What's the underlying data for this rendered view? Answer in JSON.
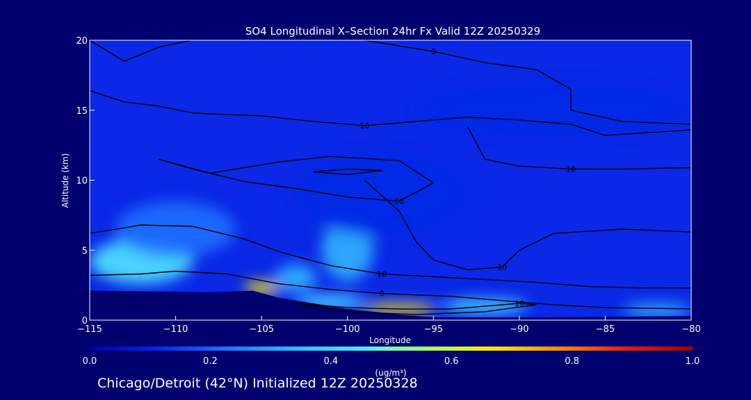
{
  "chart_data": {
    "type": "heatmap",
    "title": "SO4 Longitudinal X–Section 24hr  Fx Valid 12Z 20250329",
    "xlabel": "Longitude",
    "ylabel": "Altitude (km)",
    "xlim": [
      -115,
      -80
    ],
    "ylim": [
      0,
      20
    ],
    "x_ticks": [
      "−115",
      "−110",
      "−105",
      "−100",
      "−95",
      "−90",
      "−85",
      "−80"
    ],
    "x_tick_values": [
      -115,
      -110,
      -105,
      -100,
      -95,
      -90,
      -85,
      -80
    ],
    "y_ticks": [
      "0",
      "5",
      "10",
      "15",
      "20"
    ],
    "y_tick_values": [
      0,
      5,
      10,
      15,
      20
    ],
    "colorbar": {
      "label": "(ug/m³)",
      "ticks": [
        "0.0",
        "0.2",
        "0.4",
        "0.6",
        "0.8",
        "1.0"
      ],
      "tick_values": [
        0,
        0.2,
        0.4,
        0.6,
        0.8,
        1.0
      ],
      "colors": [
        "#0000a0",
        "#0028e6",
        "#1e6eff",
        "#32b4ff",
        "#50e6ff",
        "#a0ff6e",
        "#ffe600",
        "#ff8c00",
        "#e61e00",
        "#a00000"
      ]
    },
    "surface_altitude_km": [
      {
        "lon": -115,
        "alt": 2.1
      },
      {
        "lon": -108,
        "alt": 2.0
      },
      {
        "lon": -105.5,
        "alt": 2.1
      },
      {
        "lon": -104,
        "alt": 1.6
      },
      {
        "lon": -100,
        "alt": 0.8
      },
      {
        "lon": -97,
        "alt": 0.4
      },
      {
        "lon": -95,
        "alt": 0.2
      },
      {
        "lon": -92,
        "alt": 0.2
      },
      {
        "lon": -88,
        "alt": 0.2
      },
      {
        "lon": -80,
        "alt": 0.3
      }
    ],
    "concentration_blobs": [
      {
        "lon": -105,
        "alt": 2.3,
        "value": 0.65,
        "sx": 1.0,
        "sy": 0.5
      },
      {
        "lon": -97,
        "alt": 0.8,
        "value": 0.72,
        "sx": 2.2,
        "sy": 0.4
      },
      {
        "lon": -101,
        "alt": 1.3,
        "value": 0.45,
        "sx": 2.0,
        "sy": 0.5
      },
      {
        "lon": -92,
        "alt": 1.0,
        "value": 0.4,
        "sx": 2.5,
        "sy": 0.5
      },
      {
        "lon": -112,
        "alt": 4.2,
        "value": 0.4,
        "sx": 3.0,
        "sy": 1.6
      },
      {
        "lon": -110,
        "alt": 6.5,
        "value": 0.22,
        "sx": 3.5,
        "sy": 2.0
      },
      {
        "lon": -100,
        "alt": 5.0,
        "value": 0.3,
        "sx": 1.5,
        "sy": 2.2
      },
      {
        "lon": -103,
        "alt": 3.0,
        "value": 0.3,
        "sx": 1.2,
        "sy": 1.0
      },
      {
        "lon": -98,
        "alt": 9.0,
        "value": 0.12,
        "sx": 5.0,
        "sy": 3.0
      },
      {
        "lon": -82,
        "alt": 0.7,
        "value": 0.3,
        "sx": 2.0,
        "sy": 0.5
      },
      {
        "lon": -88,
        "alt": 15.0,
        "value": 0.12,
        "sx": 8.0,
        "sy": 2.0
      }
    ],
    "temperature_contours": [
      {
        "label": "0",
        "points": [
          [
            -115,
            20.0
          ],
          [
            -113,
            18.5
          ],
          [
            -111,
            19.5
          ],
          [
            -108,
            20.3
          ],
          [
            -103,
            20.4
          ],
          [
            -99,
            20.0
          ],
          [
            -95,
            19.2
          ],
          [
            -92,
            18.4
          ],
          [
            -89,
            17.9
          ],
          [
            -87,
            16.5
          ],
          [
            -87,
            15.0
          ],
          [
            -84,
            14.2
          ],
          [
            -80,
            14.0
          ]
        ]
      },
      {
        "label": "10",
        "points": [
          [
            -115,
            16.4
          ],
          [
            -113,
            15.6
          ],
          [
            -111,
            15.3
          ],
          [
            -109,
            14.8
          ],
          [
            -105,
            14.6
          ],
          [
            -102,
            14.2
          ],
          [
            -99,
            13.9
          ],
          [
            -96,
            14.2
          ],
          [
            -93,
            14.5
          ],
          [
            -90,
            14.3
          ],
          [
            -87,
            14.0
          ],
          [
            -85,
            13.2
          ],
          [
            -80,
            13.6
          ]
        ]
      },
      {
        "label": "20",
        "points": [
          [
            -111,
            11.5
          ],
          [
            -108,
            10.5
          ],
          [
            -104,
            11.3
          ],
          [
            -101,
            11.7
          ],
          [
            -97,
            11.4
          ],
          [
            -95,
            9.8
          ],
          [
            -97,
            8.5
          ],
          [
            -100,
            8.8
          ],
          [
            -103,
            9.4
          ],
          [
            -106,
            9.9
          ],
          [
            -109,
            10.8
          ],
          [
            -111,
            11.5
          ]
        ]
      },
      {
        "label": "",
        "points": [
          [
            -102,
            10.6
          ],
          [
            -100,
            10.8
          ],
          [
            -98,
            10.7
          ],
          [
            -100,
            10.4
          ],
          [
            -102,
            10.6
          ]
        ]
      },
      {
        "label": "10",
        "points": [
          [
            -115,
            6.2
          ],
          [
            -112,
            6.8
          ],
          [
            -109,
            6.7
          ],
          [
            -106,
            5.8
          ],
          [
            -104,
            4.9
          ],
          [
            -101,
            3.9
          ],
          [
            -98,
            3.3
          ],
          [
            -95,
            3.1
          ],
          [
            -92,
            2.9
          ],
          [
            -89,
            2.7
          ],
          [
            -86,
            2.4
          ],
          [
            -83,
            2.3
          ],
          [
            -80,
            2.3
          ]
        ]
      },
      {
        "label": "0",
        "points": [
          [
            -115,
            3.2
          ],
          [
            -112,
            3.3
          ],
          [
            -110,
            3.5
          ],
          [
            -107,
            3.3
          ],
          [
            -104,
            2.6
          ],
          [
            -101,
            2.2
          ],
          [
            -98,
            1.9
          ],
          [
            -94,
            1.7
          ],
          [
            -91,
            1.4
          ],
          [
            -88,
            1.1
          ],
          [
            -85,
            0.9
          ],
          [
            -80,
            0.8
          ]
        ]
      },
      {
        "label": "10",
        "points": [
          [
            -103,
            1.2
          ],
          [
            -100,
            0.9
          ],
          [
            -97,
            0.8
          ],
          [
            -94,
            0.8
          ],
          [
            -92,
            1.0
          ],
          [
            -90,
            1.2
          ],
          [
            -89,
            1.1
          ],
          [
            -92,
            0.6
          ],
          [
            -96,
            0.4
          ],
          [
            -100,
            0.6
          ],
          [
            -103,
            1.2
          ]
        ]
      },
      {
        "label": "10",
        "points": [
          [
            -99,
            10.0
          ],
          [
            -97,
            7.8
          ],
          [
            -96,
            5.6
          ],
          [
            -95,
            4.3
          ],
          [
            -93,
            3.6
          ],
          [
            -91,
            3.8
          ],
          [
            -90,
            5.0
          ],
          [
            -88,
            6.2
          ],
          [
            -84,
            6.5
          ],
          [
            -80,
            6.3
          ]
        ]
      },
      {
        "label": "10",
        "points": [
          [
            -93,
            13.8
          ],
          [
            -92,
            11.5
          ],
          [
            -90,
            11.0
          ],
          [
            -87,
            10.8
          ],
          [
            -84,
            10.8
          ],
          [
            -80,
            10.9
          ]
        ]
      }
    ]
  },
  "footer": "Chicago/Detroit (42°N) Initialized 12Z 20250328",
  "colors": {
    "background": "#00006e",
    "text": "#ffffff",
    "contour": "#000000"
  }
}
